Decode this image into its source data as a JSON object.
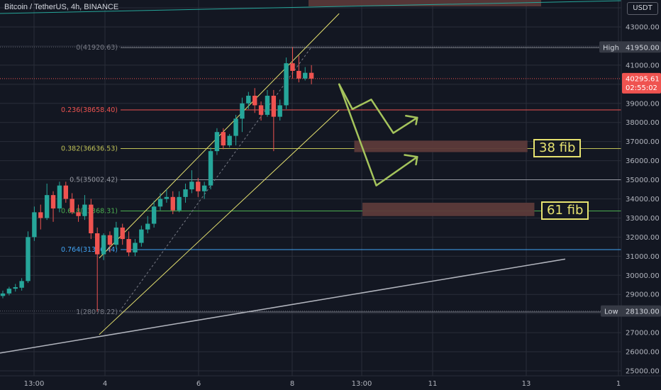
{
  "header": {
    "title": "Bitcoin / TetherUS, 4h, BINANCE",
    "currency": "USDT"
  },
  "colors": {
    "up": "#26a69a",
    "down": "#ef5350",
    "bg": "#131722",
    "grid": "#2a2e39",
    "channel": "#e6e26f",
    "arrow": "#a5c45c",
    "zone": "#5c3a3a"
  },
  "annotations": {
    "fib38": "38 fib",
    "fib61": "61 fib"
  },
  "chart_data": {
    "type": "candlestick",
    "title": "Bitcoin / TetherUS, 4h, BINANCE",
    "y_axis": {
      "min": 25000,
      "max": 44000,
      "ticks": [
        25000,
        26000,
        27000,
        28000,
        29000,
        30000,
        31000,
        32000,
        33000,
        34000,
        35000,
        36000,
        37000,
        38000,
        39000,
        40000,
        41000,
        42000,
        43000,
        44000
      ],
      "tick_labels": [
        "25000.00",
        "26000.00",
        "27000.00",
        "28000.00",
        "29000.00",
        "30000.00",
        "31000.00",
        "32000.00",
        "33000.00",
        "34000.00",
        "35000.00",
        "36000.00",
        "37000.00",
        "38000.00",
        "39000.00",
        "40000.00",
        "41000.00",
        "42000.00",
        "43000.00",
        "44000.00"
      ]
    },
    "x_axis": {
      "labels": [
        "13:00",
        "4",
        "6",
        "8",
        "13:00",
        "11",
        "13",
        "1"
      ]
    },
    "price_labels": {
      "high": {
        "label": "High",
        "value": "41950.00"
      },
      "low": {
        "label": "Low",
        "value": "28130.00"
      },
      "last": {
        "value": "40295.61",
        "timer": "02:55:02"
      }
    },
    "fib_levels": [
      {
        "label": "0(41920.63)",
        "value": 41920.63,
        "color": "#787b86"
      },
      {
        "label": "0.236(38658.40)",
        "value": 38658.4,
        "color": "#ef5350"
      },
      {
        "label": "0.382(36636.53)",
        "value": 36636.53,
        "color": "#c0c257"
      },
      {
        "label": "0.5(35002.42)",
        "value": 35002.42,
        "color": "#9598a1"
      },
      {
        "label": "0.618(33368.31)",
        "value": 33368.31,
        "color": "#4caf50"
      },
      {
        "label": "0.764(31346.44)",
        "value": 31346.44,
        "color": "#42a5f5"
      },
      {
        "label": "1(28078.22)",
        "value": 28078.22,
        "color": "#787b86"
      }
    ],
    "candles": [
      [
        28920,
        29050,
        28800,
        29200
      ],
      [
        29050,
        29300,
        28950,
        29400
      ],
      [
        29300,
        29380,
        29150,
        29550
      ],
      [
        29350,
        29700,
        29200,
        29850
      ],
      [
        29700,
        32000,
        29600,
        32300
      ],
      [
        32000,
        33300,
        31800,
        33600
      ],
      [
        33300,
        33000,
        32400,
        33700
      ],
      [
        33000,
        34200,
        32900,
        34800
      ],
      [
        34200,
        33500,
        32800,
        34400
      ],
      [
        33500,
        34700,
        33300,
        34900
      ],
      [
        34700,
        34000,
        33800,
        34900
      ],
      [
        34000,
        33300,
        33200,
        34300
      ],
      [
        33300,
        33100,
        32800,
        33700
      ],
      [
        33100,
        33700,
        32900,
        34200
      ],
      [
        33700,
        32200,
        31900,
        34000
      ],
      [
        32200,
        31100,
        28100,
        32500
      ],
      [
        31100,
        32100,
        30800,
        32200
      ],
      [
        32100,
        31600,
        31200,
        32300
      ],
      [
        31600,
        32500,
        31400,
        32800
      ],
      [
        32500,
        31900,
        31600,
        32700
      ],
      [
        31900,
        31200,
        31000,
        32300
      ],
      [
        31200,
        31700,
        31000,
        31900
      ],
      [
        31700,
        32400,
        31500,
        32600
      ],
      [
        32400,
        32700,
        32200,
        33100
      ],
      [
        32700,
        33600,
        32500,
        33900
      ],
      [
        33600,
        34000,
        33400,
        34300
      ],
      [
        34000,
        34100,
        33800,
        34500
      ],
      [
        34100,
        33400,
        33200,
        34400
      ],
      [
        33400,
        34100,
        33300,
        34400
      ],
      [
        34100,
        34500,
        33800,
        34800
      ],
      [
        34500,
        34900,
        34300,
        35500
      ],
      [
        34900,
        34400,
        34100,
        35100
      ],
      [
        34400,
        34700,
        34000,
        34900
      ],
      [
        34700,
        36500,
        34500,
        36700
      ],
      [
        36500,
        37500,
        36300,
        37700
      ],
      [
        37500,
        36800,
        36600,
        37700
      ],
      [
        36800,
        37300,
        36700,
        37400
      ],
      [
        37300,
        38200,
        36800,
        38400
      ],
      [
        38200,
        39000,
        37500,
        39300
      ],
      [
        39000,
        39400,
        38700,
        39600
      ],
      [
        39400,
        38900,
        38500,
        39800
      ],
      [
        38900,
        38400,
        38100,
        39100
      ],
      [
        38400,
        39400,
        38300,
        39700
      ],
      [
        39400,
        38300,
        36500,
        39700
      ],
      [
        38300,
        38900,
        38100,
        39200
      ],
      [
        38900,
        41100,
        38700,
        41400
      ],
      [
        41100,
        40700,
        40300,
        41950
      ],
      [
        40700,
        40300,
        40100,
        41500
      ],
      [
        40300,
        40600,
        40200,
        40900
      ],
      [
        40600,
        40296,
        40000,
        41000
      ]
    ]
  }
}
